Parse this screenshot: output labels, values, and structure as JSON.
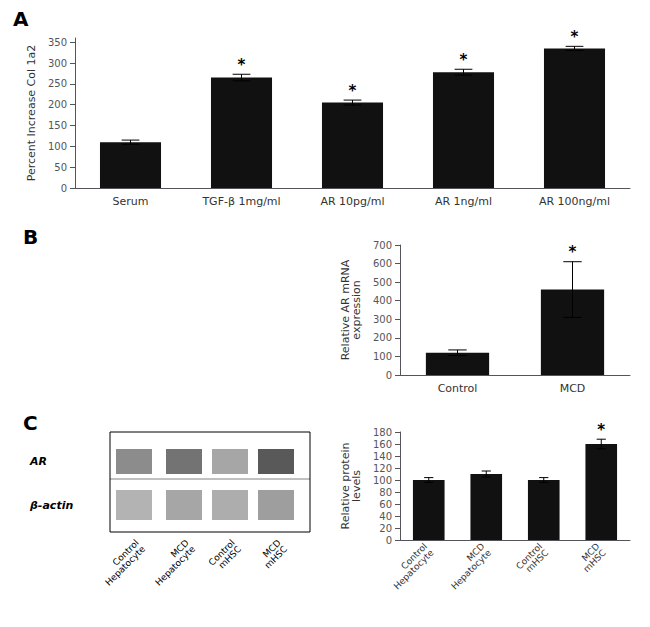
{
  "chart_data": [
    {
      "type": "bar",
      "title": "A",
      "categories": [
        "Serum",
        "TGF-β 1mg/ml",
        "AR 10pg/ml",
        "AR 1ng/ml",
        "AR 100ng/ml"
      ],
      "values": [
        110,
        265,
        205,
        278,
        335
      ],
      "errors": [
        5,
        8,
        6,
        7,
        5
      ],
      "color": "#111111",
      "ylabel": "Percent Increase Col 1a2",
      "ylim": [
        0,
        360
      ],
      "yticks": [
        0,
        50,
        100,
        150,
        200,
        250,
        300,
        350
      ],
      "grid": false,
      "annotations": [
        {
          "category": "TGF-β 1mg/ml",
          "text": "*"
        },
        {
          "category": "AR 10pg/ml",
          "text": "*"
        },
        {
          "category": "AR 1ng/ml",
          "text": "*"
        },
        {
          "category": "AR 100ng/ml",
          "text": "*"
        }
      ]
    },
    {
      "type": "bar",
      "title": "B",
      "categories": [
        "Control",
        "MCD"
      ],
      "values": [
        120,
        460
      ],
      "errors": [
        15,
        150
      ],
      "color": "#111111",
      "ylabel": "Relative AR mRNA\nexpression",
      "ylim": [
        0,
        700
      ],
      "yticks": [
        0,
        100,
        200,
        300,
        400,
        500,
        600,
        700
      ],
      "grid": false,
      "annotations": [
        {
          "category": "MCD",
          "text": "*"
        }
      ]
    },
    {
      "type": "blot",
      "title": "C",
      "categories": [
        "Control\nHepatocyte",
        "MCD\nHepatocyte",
        "Control\nmHSC",
        "MCD\nmHSC"
      ],
      "series": [
        {
          "name": "AR",
          "colors": [
            "#8c8c8c",
            "#737373",
            "#a6a6a6",
            "#595959"
          ]
        },
        {
          "name": "β-actin",
          "colors": [
            "#b3b3b3",
            "#a6a6a6",
            "#adadad",
            "#9e9e9e"
          ]
        }
      ]
    },
    {
      "type": "bar",
      "categories": [
        "Control\nHepatocyte",
        "MCD\nHepatocyte",
        "Control\nmHSC",
        "MCD\nmHSC"
      ],
      "values": [
        100,
        110,
        100,
        160
      ],
      "errors": [
        4,
        5,
        4,
        8
      ],
      "color": "#111111",
      "ylabel": "Relative protein\nlevels",
      "ylim": [
        0,
        180
      ],
      "yticks": [
        0,
        20,
        40,
        60,
        80,
        100,
        120,
        140,
        160,
        180
      ],
      "grid": false,
      "annotations": [
        {
          "category": "MCD\nmHSC",
          "text": "*"
        }
      ]
    }
  ]
}
